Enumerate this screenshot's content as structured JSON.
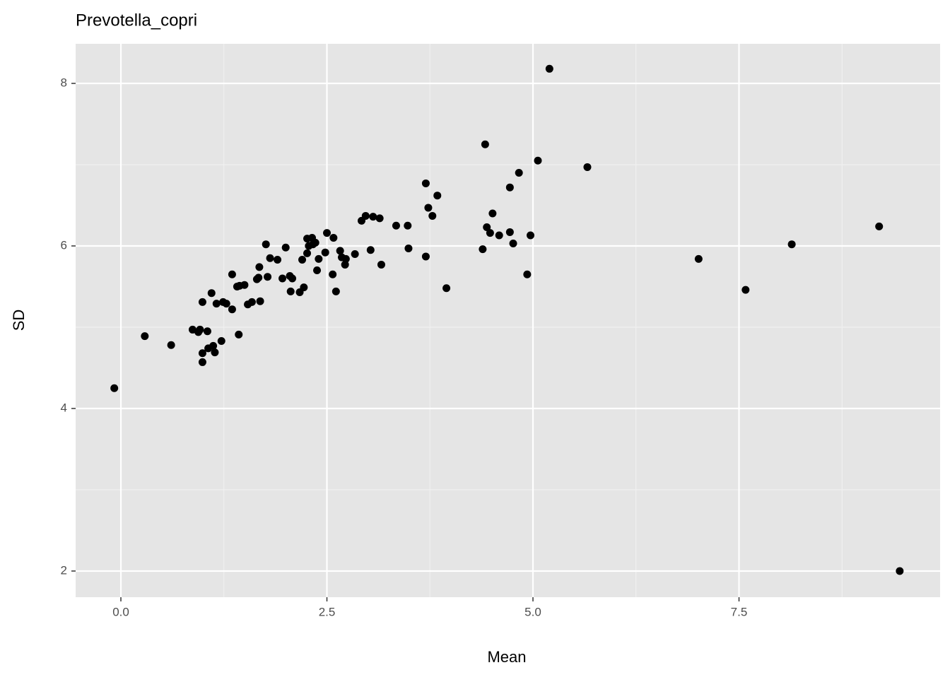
{
  "chart_data": {
    "type": "scatter",
    "title": "Prevotella_copri",
    "x_label": "Mean",
    "y_label": "SD",
    "color": "#000000",
    "grid": true,
    "xlim": [
      -0.549,
      9.94
    ],
    "ylim": [
      1.678,
      8.487
    ],
    "xticks": [
      {
        "value": 0,
        "label": "0.0"
      },
      2.5,
      {
        "value": 5,
        "label": "5.0"
      },
      7.5
    ],
    "yticks": [
      2,
      4,
      6,
      8
    ],
    "x_minor_grid": [
      1.25,
      3.75,
      6.25,
      8.75
    ],
    "y_minor_grid": [
      3,
      5,
      7
    ],
    "x": [
      -0.08,
      0.29,
      0.61,
      0.87,
      0.94,
      0.96,
      0.99,
      0.99,
      0.99,
      1.05,
      1.06,
      1.1,
      1.12,
      1.14,
      1.16,
      1.22,
      1.24,
      1.28,
      1.35,
      1.35,
      1.41,
      1.43,
      1.44,
      1.5,
      1.54,
      1.59,
      1.65,
      1.67,
      1.69,
      1.68,
      1.76,
      1.78,
      1.81,
      1.9,
      1.96,
      2.0,
      2.05,
      2.06,
      2.08,
      2.17,
      2.2,
      2.22,
      2.26,
      2.26,
      2.28,
      2.32,
      2.33,
      2.36,
      2.38,
      2.4,
      2.48,
      2.5,
      2.57,
      2.58,
      2.61,
      2.66,
      2.68,
      2.72,
      2.73,
      2.84,
      2.92,
      2.97,
      3.03,
      3.06,
      3.14,
      3.16,
      3.34,
      3.48,
      3.49,
      3.7,
      3.7,
      3.73,
      3.78,
      3.84,
      3.95,
      4.39,
      4.42,
      4.44,
      4.48,
      4.51,
      4.59,
      4.72,
      4.72,
      4.76,
      4.83,
      4.93,
      4.97,
      5.06,
      5.2,
      5.66,
      7.01,
      7.58,
      8.14,
      9.2,
      9.45
    ],
    "values": [
      4.25,
      4.89,
      4.78,
      4.97,
      4.94,
      4.97,
      5.31,
      4.68,
      4.57,
      4.95,
      4.74,
      5.42,
      4.77,
      4.69,
      5.29,
      4.83,
      5.31,
      5.29,
      5.65,
      5.22,
      5.5,
      4.91,
      5.51,
      5.52,
      5.28,
      5.31,
      5.59,
      5.61,
      5.32,
      5.74,
      6.02,
      5.62,
      5.85,
      5.83,
      5.6,
      5.98,
      5.63,
      5.44,
      5.6,
      5.43,
      5.83,
      5.49,
      6.09,
      5.91,
      6.0,
      6.1,
      6.02,
      6.04,
      5.7,
      5.84,
      5.92,
      6.16,
      5.65,
      6.1,
      5.44,
      5.94,
      5.86,
      5.77,
      5.84,
      5.9,
      6.31,
      6.37,
      5.95,
      6.36,
      6.34,
      5.77,
      6.25,
      6.25,
      5.97,
      6.77,
      5.87,
      6.47,
      6.37,
      6.62,
      5.48,
      5.96,
      7.25,
      6.23,
      6.16,
      6.4,
      6.13,
      6.72,
      6.17,
      6.03,
      6.9,
      5.65,
      6.13,
      7.05,
      8.18,
      6.97,
      5.84,
      5.46,
      6.02,
      6.24,
      2.0
    ]
  }
}
